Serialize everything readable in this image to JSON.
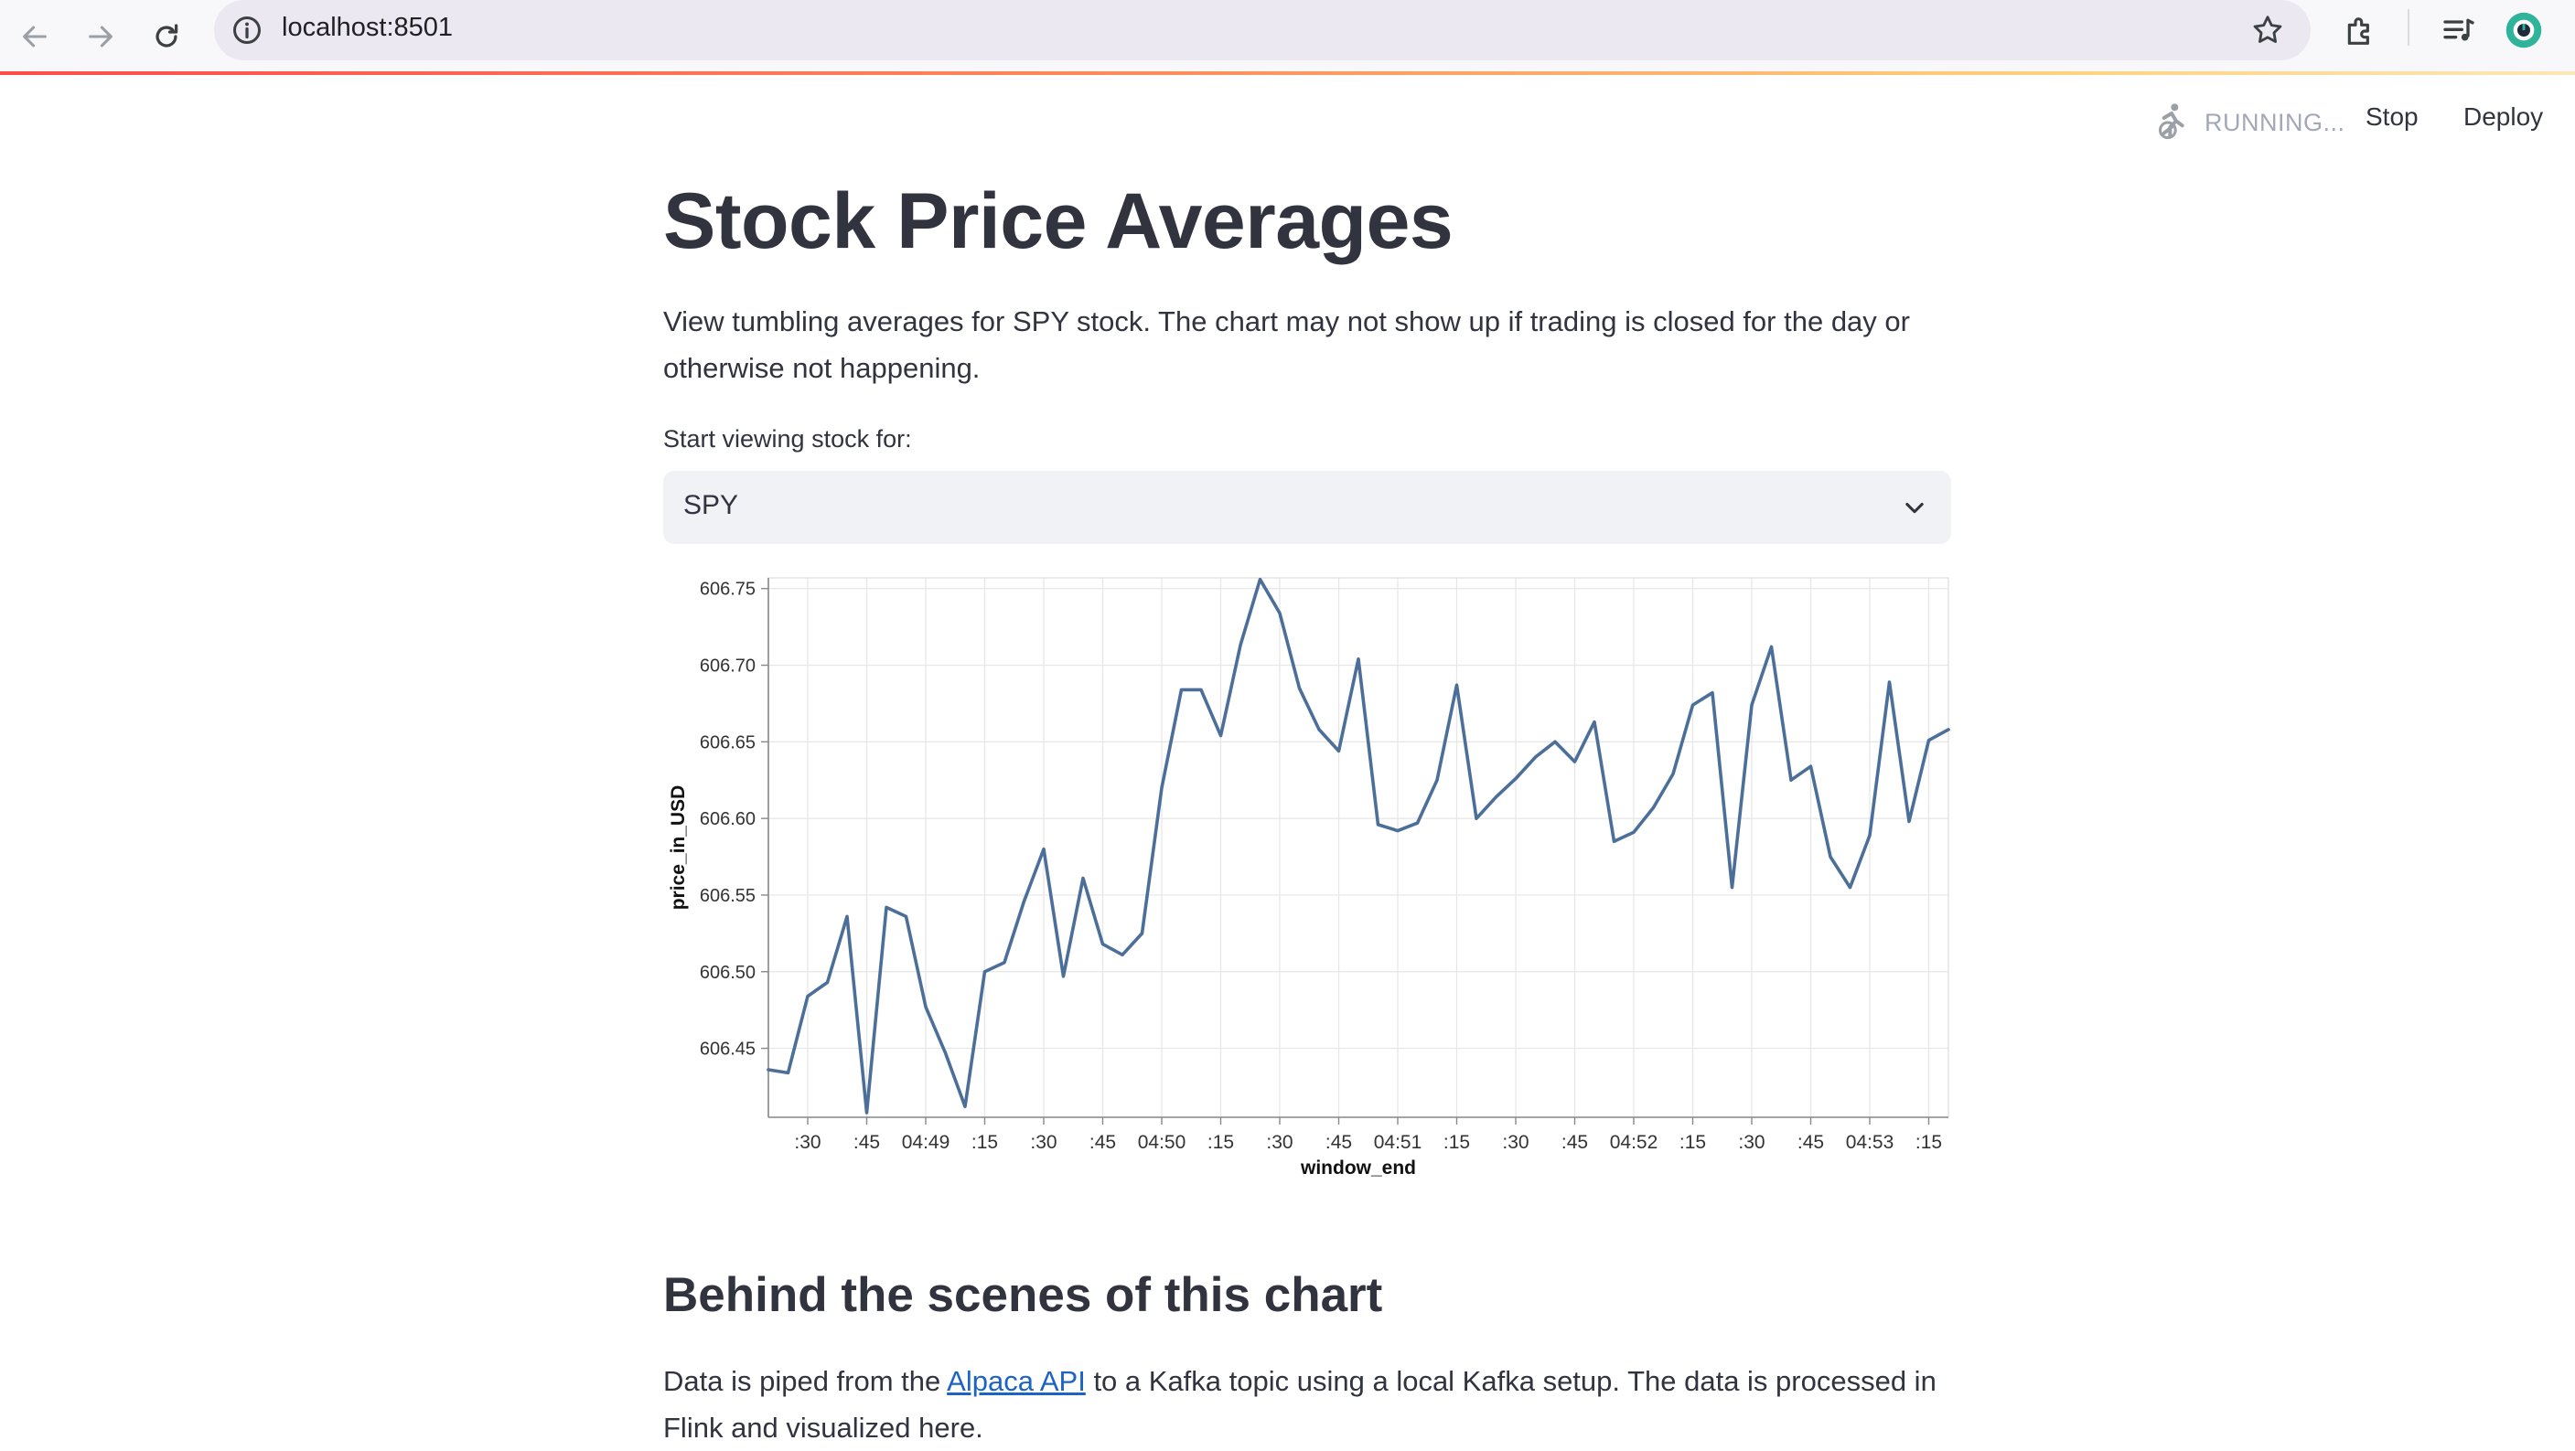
{
  "browser": {
    "url": "localhost:8501"
  },
  "header": {
    "status": "RUNNING...",
    "stop_label": "Stop",
    "deploy_label": "Deploy"
  },
  "page": {
    "title": "Stock Price Averages",
    "intro": "View tumbling averages for SPY stock. The chart may not show up if trading is closed for the day or otherwise not happening.",
    "select_label": "Start viewing stock for:",
    "select_value": "SPY",
    "section_heading": "Behind the scenes of this chart",
    "outro_before_link": "Data is piped from the ",
    "outro_link": "Alpaca API",
    "outro_after_link": " to a Kafka topic using a local Kafka setup. The data is processed in Flink and visualized here."
  },
  "colors": {
    "line": "#4c6f9a",
    "accent": "#ff4b4b"
  },
  "chart_data": {
    "type": "line",
    "xlabel": "window_end",
    "ylabel": "price_in_USD",
    "ylim": [
      606.405,
      606.757
    ],
    "yticks": [
      606.45,
      606.5,
      606.55,
      606.6,
      606.65,
      606.7,
      606.75
    ],
    "grid": true,
    "x_start": "04:48:20",
    "x_step_seconds": 5,
    "xtick_labels": [
      {
        "time": "04:48:30",
        "label": ":30"
      },
      {
        "time": "04:48:45",
        "label": ":45"
      },
      {
        "time": "04:49:00",
        "label": "04:49"
      },
      {
        "time": "04:49:15",
        "label": ":15"
      },
      {
        "time": "04:49:30",
        "label": ":30"
      },
      {
        "time": "04:49:45",
        "label": ":45"
      },
      {
        "time": "04:50:00",
        "label": "04:50"
      },
      {
        "time": "04:50:15",
        "label": ":15"
      },
      {
        "time": "04:50:30",
        "label": ":30"
      },
      {
        "time": "04:50:45",
        "label": ":45"
      },
      {
        "time": "04:51:00",
        "label": "04:51"
      },
      {
        "time": "04:51:15",
        "label": ":15"
      },
      {
        "time": "04:51:30",
        "label": ":30"
      },
      {
        "time": "04:51:45",
        "label": ":45"
      },
      {
        "time": "04:52:00",
        "label": "04:52"
      },
      {
        "time": "04:52:15",
        "label": ":15"
      },
      {
        "time": "04:52:30",
        "label": ":30"
      },
      {
        "time": "04:52:45",
        "label": ":45"
      },
      {
        "time": "04:53:00",
        "label": "04:53"
      },
      {
        "time": "04:53:15",
        "label": ":15"
      }
    ],
    "values": [
      606.436,
      606.434,
      606.484,
      606.493,
      606.536,
      606.408,
      606.542,
      606.536,
      606.477,
      606.447,
      606.412,
      606.5,
      606.506,
      606.546,
      606.58,
      606.497,
      606.561,
      606.518,
      606.511,
      606.525,
      606.62,
      606.684,
      606.684,
      606.654,
      606.713,
      606.756,
      606.734,
      606.685,
      606.658,
      606.644,
      606.704,
      606.596,
      606.592,
      606.597,
      606.625,
      606.687,
      606.6,
      606.614,
      606.626,
      606.64,
      606.65,
      606.637,
      606.663,
      606.585,
      606.591,
      606.607,
      606.629,
      606.674,
      606.682,
      606.555,
      606.674,
      606.712,
      606.625,
      606.634,
      606.575,
      606.555,
      606.589,
      606.689,
      606.598,
      606.651,
      606.658
    ]
  }
}
